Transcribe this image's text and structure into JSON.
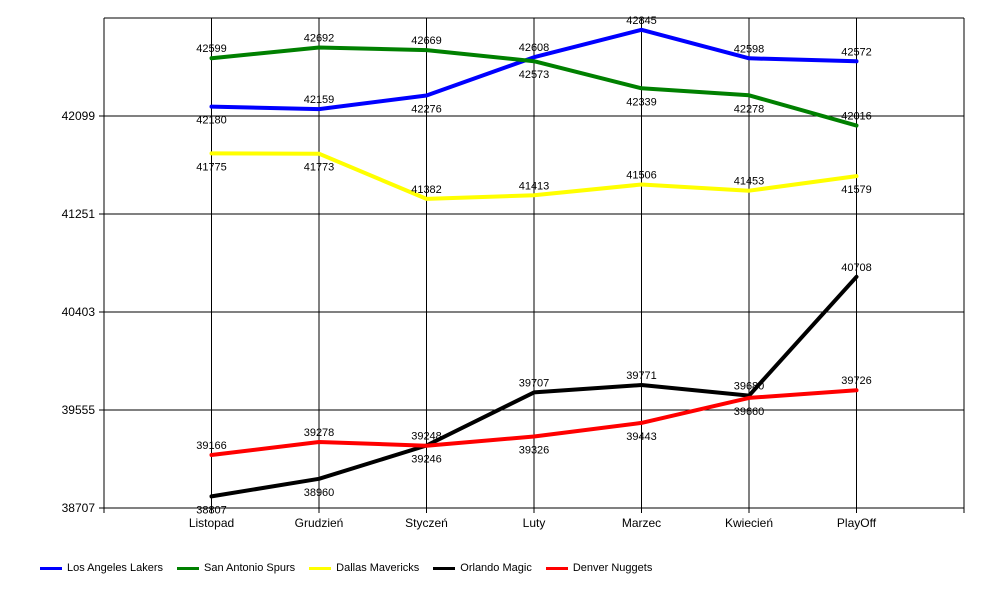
{
  "chart_data": {
    "type": "line",
    "title": "",
    "xlabel": "",
    "ylabel": "",
    "categories": [
      "Listopad",
      "Grudzień",
      "Styczeń",
      "Luty",
      "Marzec",
      "Kwiecień",
      "PlayOff"
    ],
    "y_ticks": [
      "38707",
      "39555",
      "40403",
      "41251",
      "42099"
    ],
    "ylim": [
      38707,
      42947
    ],
    "grid": true,
    "legend_position": "bottom-left",
    "series": [
      {
        "name": "Los Angeles Lakers",
        "color": "#0000ff",
        "values": [
          42180,
          42159,
          42276,
          42608,
          42845,
          42598,
          42572
        ]
      },
      {
        "name": "San Antonio Spurs",
        "color": "#008000",
        "values": [
          42599,
          42692,
          42669,
          42573,
          42339,
          42278,
          42016
        ]
      },
      {
        "name": "Dallas Mavericks",
        "color": "#ffff00",
        "values": [
          41775,
          41773,
          41382,
          41413,
          41506,
          41453,
          41579
        ]
      },
      {
        "name": "Orlando Magic",
        "color": "#000000",
        "values": [
          38807,
          38960,
          39248,
          39707,
          39771,
          39680,
          40708
        ]
      },
      {
        "name": "Denver Nuggets",
        "color": "#ff0000",
        "values": [
          39166,
          39278,
          39246,
          39326,
          39443,
          39660,
          39726
        ]
      }
    ]
  }
}
